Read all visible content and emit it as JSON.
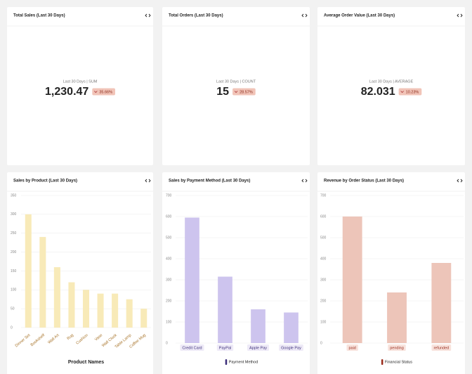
{
  "kpis": [
    {
      "title": "Total Sales (Last 30 Days)",
      "subtitle": "Last 30 Days | SUM",
      "value": "1,230.47",
      "change": "35.66%"
    },
    {
      "title": "Total Orders (Last 30 Days)",
      "subtitle": "Last 30 Days | COUNT",
      "value": "15",
      "change": "28.57%"
    },
    {
      "title": "Average Order Value (Last 30 Days)",
      "subtitle": "Last 30 Days | AVERAGE",
      "value": "82.031",
      "change": "10.23%"
    }
  ],
  "chart_data": [
    {
      "type": "bar",
      "title": "Sales by Product (Last 30 Days)",
      "categories": [
        "Dinner Set",
        "Bookshelf",
        "Wall Art",
        "Rug",
        "Cushion",
        "Vase",
        "Wall Clock",
        "Table Lamp",
        "Coffee Mug"
      ],
      "values": [
        300,
        240,
        160,
        120,
        100,
        90,
        90,
        75,
        50
      ],
      "color": "#f8eab8",
      "ylim": [
        0,
        350
      ],
      "yticks": [
        0,
        50,
        100,
        150,
        200,
        250,
        300,
        350
      ],
      "grid": true,
      "xlabel": "Product Names"
    },
    {
      "type": "bar",
      "title": "Sales by Payment Method (Last 30 Days)",
      "categories": [
        "Credit Card",
        "PayPal",
        "Apple Pay",
        "Google Pay"
      ],
      "values": [
        595,
        315,
        160,
        145
      ],
      "color": "#cdc4ee",
      "ylim": [
        0,
        700
      ],
      "yticks": [
        0,
        100,
        200,
        300,
        400,
        500,
        600,
        700
      ],
      "grid": true,
      "legend": "Payment Method"
    },
    {
      "type": "bar",
      "title": "Revenue by Order Status (Last 30 Days)",
      "categories": [
        "paid",
        "pending",
        "refunded"
      ],
      "values": [
        600,
        240,
        380
      ],
      "color": "#edc5b9",
      "ylim": [
        0,
        700
      ],
      "yticks": [
        0,
        100,
        200,
        300,
        400,
        500,
        600,
        700
      ],
      "grid": true,
      "legend": "Financial Status"
    }
  ]
}
